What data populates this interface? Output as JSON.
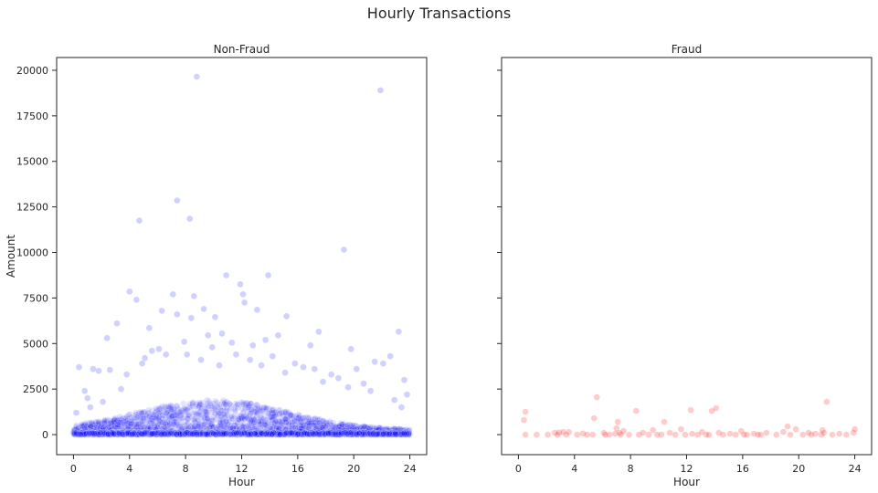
{
  "figure": {
    "title": "Hourly Transactions"
  },
  "chart_data": [
    {
      "type": "scatter",
      "title": "Non-Fraud",
      "xlabel": "Hour",
      "ylabel": "Amount",
      "xlim": [
        -1.2,
        25.2
      ],
      "ylim": [
        -1100,
        20700
      ],
      "xticks": [
        0,
        4,
        8,
        12,
        16,
        20,
        24
      ],
      "yticks": [
        0,
        2500,
        5000,
        7500,
        10000,
        12500,
        15000,
        17500,
        20000
      ],
      "color": "#0000ff",
      "alpha": 0.12,
      "points": [
        [
          8.8,
          19650
        ],
        [
          21.9,
          18900
        ],
        [
          7.4,
          12850
        ],
        [
          8.3,
          11850
        ],
        [
          4.7,
          11750
        ],
        [
          19.3,
          10150
        ],
        [
          4.0,
          7850
        ],
        [
          4.5,
          7400
        ],
        [
          7.1,
          7700
        ],
        [
          8.6,
          7600
        ],
        [
          10.9,
          8750
        ],
        [
          11.9,
          8250
        ],
        [
          12.1,
          7700
        ],
        [
          13.9,
          8750
        ],
        [
          13.1,
          6850
        ],
        [
          12.2,
          7250
        ],
        [
          3.1,
          6100
        ],
        [
          8.4,
          6400
        ],
        [
          6.3,
          6800
        ],
        [
          7.4,
          6600
        ],
        [
          9.3,
          6900
        ],
        [
          10.1,
          6450
        ],
        [
          15.2,
          6500
        ],
        [
          17.5,
          5650
        ],
        [
          23.2,
          5650
        ],
        [
          2.4,
          5300
        ],
        [
          5.4,
          5850
        ],
        [
          9.6,
          5450
        ],
        [
          10.6,
          5550
        ],
        [
          11.3,
          5050
        ],
        [
          13.7,
          5200
        ],
        [
          14.6,
          5450
        ],
        [
          16.9,
          4900
        ],
        [
          19.8,
          4700
        ],
        [
          21.5,
          4000
        ],
        [
          22.6,
          4300
        ],
        [
          23.6,
          3000
        ],
        [
          0.4,
          3700
        ],
        [
          1.4,
          3600
        ],
        [
          1.8,
          3500
        ],
        [
          2.6,
          3550
        ],
        [
          0.8,
          2400
        ],
        [
          1.0,
          2000
        ],
        [
          20.2,
          3600
        ],
        [
          22.1,
          3900
        ],
        [
          23.8,
          2200
        ],
        [
          18.4,
          3300
        ],
        [
          17.2,
          3600
        ],
        [
          6.1,
          4700
        ],
        [
          5.6,
          4600
        ],
        [
          6.6,
          4400
        ],
        [
          7.9,
          5100
        ],
        [
          9.9,
          4800
        ],
        [
          11.6,
          4400
        ],
        [
          12.8,
          4900
        ],
        [
          14.2,
          4300
        ],
        [
          15.8,
          3900
        ],
        [
          16.4,
          3700
        ],
        [
          18.9,
          3100
        ],
        [
          20.7,
          2800
        ],
        [
          0.2,
          1200
        ],
        [
          23.4,
          1500
        ],
        [
          22.9,
          1900
        ],
        [
          21.2,
          2400
        ],
        [
          19.6,
          2600
        ],
        [
          3.8,
          3300
        ],
        [
          4.9,
          3900
        ],
        [
          5.1,
          4200
        ],
        [
          8.1,
          4400
        ],
        [
          9.1,
          4100
        ],
        [
          10.4,
          3800
        ],
        [
          12.6,
          4100
        ],
        [
          13.4,
          3800
        ],
        [
          15.1,
          3400
        ],
        [
          17.8,
          2900
        ],
        [
          2.1,
          1800
        ],
        [
          1.2,
          1500
        ],
        [
          3.4,
          2500
        ]
      ],
      "band": {
        "peak_hour": 10,
        "peak_amount": 1900,
        "floor_amount": 250
      }
    },
    {
      "type": "scatter",
      "title": "Fraud",
      "xlabel": "Hour",
      "ylabel": "",
      "xlim": [
        -1.2,
        25.2
      ],
      "ylim": [
        -1100,
        20700
      ],
      "xticks": [
        0,
        4,
        8,
        12,
        16,
        20,
        24
      ],
      "yticks": [
        0,
        2500,
        5000,
        7500,
        10000,
        12500,
        15000,
        17500,
        20000
      ],
      "color": "#ff0000",
      "alpha": 0.14,
      "points": [
        [
          0.5,
          0
        ],
        [
          0.5,
          1250
        ],
        [
          0.4,
          800
        ],
        [
          1.3,
          0
        ],
        [
          2.1,
          0
        ],
        [
          2.6,
          100
        ],
        [
          2.9,
          120
        ],
        [
          3.2,
          150
        ],
        [
          3.4,
          0
        ],
        [
          3.6,
          140
        ],
        [
          4.2,
          0
        ],
        [
          4.6,
          60
        ],
        [
          5.3,
          0
        ],
        [
          5.6,
          2050
        ],
        [
          5.4,
          900
        ],
        [
          6.1,
          100
        ],
        [
          6.5,
          0
        ],
        [
          6.9,
          50
        ],
        [
          7.0,
          350
        ],
        [
          7.1,
          700
        ],
        [
          7.2,
          100
        ],
        [
          7.3,
          0
        ],
        [
          7.5,
          200
        ],
        [
          7.9,
          0
        ],
        [
          8.4,
          1300
        ],
        [
          8.6,
          0
        ],
        [
          8.9,
          100
        ],
        [
          9.3,
          0
        ],
        [
          9.6,
          250
        ],
        [
          10.2,
          0
        ],
        [
          10.4,
          700
        ],
        [
          10.8,
          100
        ],
        [
          11.2,
          0
        ],
        [
          11.6,
          300
        ],
        [
          11.9,
          0
        ],
        [
          12.3,
          1350
        ],
        [
          12.4,
          50
        ],
        [
          12.8,
          0
        ],
        [
          13.1,
          150
        ],
        [
          13.4,
          0
        ],
        [
          13.8,
          1300
        ],
        [
          14.1,
          1450
        ],
        [
          14.3,
          100
        ],
        [
          14.6,
          0
        ],
        [
          15.1,
          50
        ],
        [
          15.5,
          0
        ],
        [
          15.9,
          200
        ],
        [
          16.3,
          0
        ],
        [
          16.8,
          50
        ],
        [
          17.3,
          0
        ],
        [
          17.7,
          100
        ],
        [
          18.4,
          0
        ],
        [
          18.9,
          150
        ],
        [
          19.2,
          450
        ],
        [
          19.4,
          0
        ],
        [
          19.8,
          300
        ],
        [
          20.3,
          0
        ],
        [
          20.7,
          100
        ],
        [
          21.2,
          50
        ],
        [
          21.6,
          0
        ],
        [
          21.7,
          250
        ],
        [
          21.8,
          100
        ],
        [
          22.0,
          1800
        ],
        [
          22.4,
          0
        ],
        [
          22.9,
          50
        ],
        [
          23.4,
          0
        ],
        [
          23.9,
          100
        ],
        [
          24.0,
          300
        ],
        [
          2.8,
          0
        ],
        [
          6.2,
          0
        ],
        [
          9.9,
          0
        ],
        [
          13.6,
          0
        ],
        [
          17.1,
          0
        ],
        [
          20.9,
          0
        ],
        [
          16.1,
          0
        ],
        [
          4.9,
          0
        ]
      ]
    }
  ]
}
